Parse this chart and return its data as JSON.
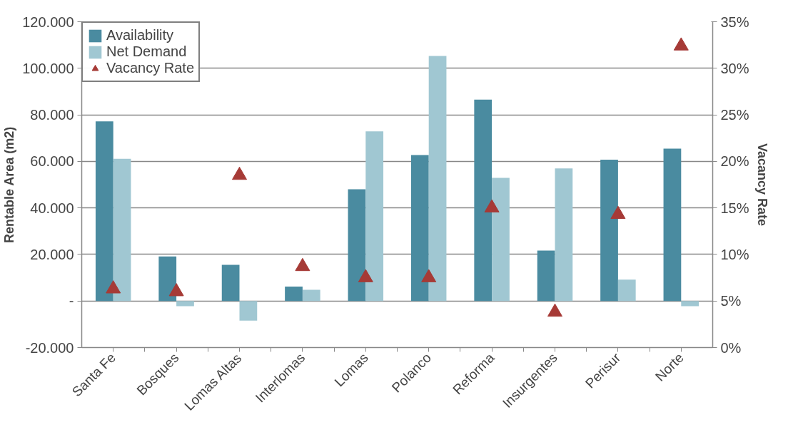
{
  "chart_data": {
    "type": "bar",
    "ylabel": "Rentable Area (m2)",
    "y2label": "Vacancy Rate",
    "categories": [
      "Santa Fe",
      "Bosques",
      "Lomas Altas",
      "Interlomas",
      "Lomas",
      "Polanco",
      "Reforma",
      "Insurgentes",
      "Perisur",
      "Norte"
    ],
    "series": [
      {
        "name": "Availability",
        "color": "#4a8ba0",
        "values": [
          77200,
          19100,
          15500,
          6200,
          48000,
          62700,
          86500,
          21700,
          60700,
          65500
        ]
      },
      {
        "name": "Net Demand",
        "color": "#a0c7d2",
        "values": [
          61100,
          -2200,
          -8400,
          4800,
          72900,
          105300,
          52900,
          57000,
          9200,
          -2200
        ]
      },
      {
        "name": "Vacancy Rate",
        "type": "scatter",
        "marker": "triangle",
        "axis": "y2",
        "color": "#a63a36",
        "values": [
          6.3,
          6.0,
          18.5,
          8.7,
          7.5,
          7.5,
          15.0,
          3.8,
          14.3,
          32.4
        ]
      }
    ],
    "ylim": [
      -20000,
      120000
    ],
    "yticks": [
      {
        "value": -20000,
        "label": "-20.000"
      },
      {
        "value": 0,
        "label": "-"
      },
      {
        "value": 20000,
        "label": "20.000"
      },
      {
        "value": 40000,
        "label": "40.000"
      },
      {
        "value": 60000,
        "label": "60.000"
      },
      {
        "value": 80000,
        "label": "80.000"
      },
      {
        "value": 100000,
        "label": "100.000"
      },
      {
        "value": 120000,
        "label": "120.000"
      }
    ],
    "y2lim": [
      0,
      35
    ],
    "y2ticks": [
      {
        "value": 0,
        "label": "0%"
      },
      {
        "value": 5,
        "label": "5%"
      },
      {
        "value": 10,
        "label": "10%"
      },
      {
        "value": 15,
        "label": "15%"
      },
      {
        "value": 20,
        "label": "20%"
      },
      {
        "value": 25,
        "label": "25%"
      },
      {
        "value": 30,
        "label": "30%"
      },
      {
        "value": 35,
        "label": "35%"
      }
    ],
    "grid": "y",
    "legend": "top left"
  }
}
